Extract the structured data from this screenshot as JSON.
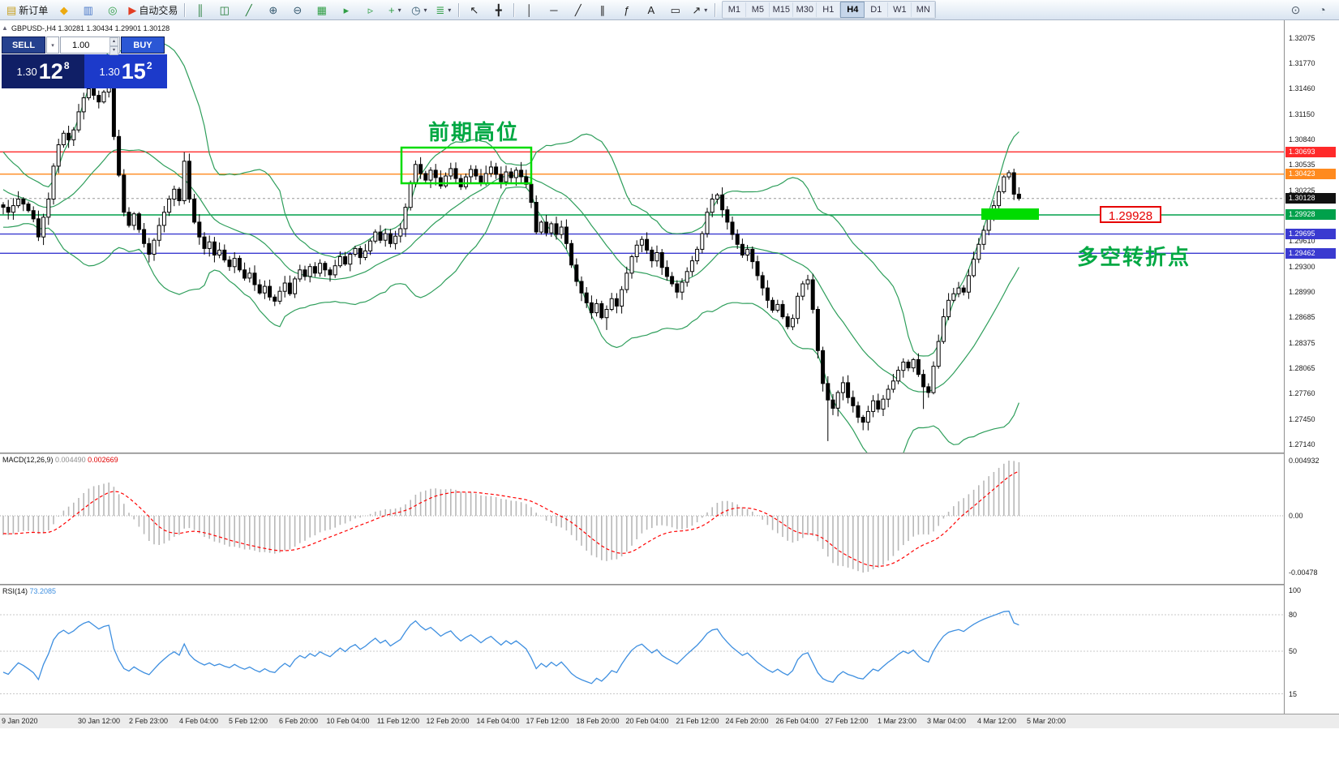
{
  "toolbar": {
    "groups": [
      {
        "items": [
          {
            "name": "new-order-button",
            "glyph": "▤",
            "color": "#c8a020",
            "label": "新订单"
          },
          {
            "name": "market-watch-button",
            "glyph": "◆",
            "color": "#ecaa10"
          },
          {
            "name": "data-window-button",
            "glyph": "▥",
            "color": "#4a78c8"
          },
          {
            "name": "navigator-button",
            "glyph": "◎",
            "color": "#2f9e44"
          },
          {
            "name": "autotrading-button",
            "glyph": "▶",
            "color": "#e23e24",
            "label": "自动交易"
          }
        ]
      },
      {
        "sep": true,
        "items": [
          {
            "name": "bar-chart-button",
            "glyph": "║",
            "color": "#1f7a33"
          },
          {
            "name": "candlestick-chart-button",
            "glyph": "◫",
            "color": "#1f7a33"
          },
          {
            "name": "line-chart-button",
            "glyph": "╱",
            "color": "#1f7a33"
          }
        ]
      },
      {
        "sep": false,
        "items": [
          {
            "name": "zoom-in-button",
            "glyph": "⊕",
            "color": "#35596f"
          },
          {
            "name": "zoom-out-button",
            "glyph": "⊖",
            "color": "#35596f"
          }
        ]
      },
      {
        "sep": false,
        "items": [
          {
            "name": "tile-windows-button",
            "glyph": "▦",
            "color": "#2f9e44"
          }
        ]
      },
      {
        "sep": false,
        "items": [
          {
            "name": "auto-scroll-button",
            "glyph": "▸",
            "color": "#2f9e44"
          },
          {
            "name": "chart-shift-button",
            "glyph": "▹",
            "color": "#2f9e44"
          }
        ]
      },
      {
        "sep": false,
        "items": [
          {
            "name": "new-chart-button",
            "glyph": "+",
            "color": "#2f9e44",
            "dropdown": true
          },
          {
            "name": "profiles-button",
            "glyph": "◷",
            "color": "#35596f",
            "dropdown": true
          },
          {
            "name": "indicators-button",
            "glyph": "≣",
            "color": "#2f9e44",
            "dropdown": true
          }
        ]
      },
      {
        "sep": true,
        "items": [
          {
            "name": "cursor-button",
            "glyph": "↖",
            "color": "#222222"
          },
          {
            "name": "crosshair-button",
            "glyph": "╋",
            "color": "#222222"
          }
        ]
      },
      {
        "sep": true,
        "items": [
          {
            "name": "vertical-line-button",
            "glyph": "│",
            "color": "#222222"
          },
          {
            "name": "horizontal-line-button",
            "glyph": "─",
            "color": "#222222"
          },
          {
            "name": "trendline-button",
            "glyph": "╱",
            "color": "#222222"
          },
          {
            "name": "equidistant-channel-button",
            "glyph": "∥",
            "color": "#222222"
          },
          {
            "name": "fibonacci-button",
            "glyph": "ƒ",
            "color": "#222222"
          },
          {
            "name": "text-button",
            "glyph": "A",
            "color": "#222222"
          },
          {
            "name": "text-label-button",
            "glyph": "▭",
            "color": "#222222"
          },
          {
            "name": "arrows-button",
            "glyph": "↗",
            "color": "#222222",
            "dropdown": true
          }
        ]
      },
      {
        "sep": true,
        "items": []
      }
    ],
    "timeframes": [
      "M1",
      "M5",
      "M15",
      "M30",
      "H1",
      "H4",
      "D1",
      "W1",
      "MN"
    ],
    "active_timeframe": "H4",
    "right_icons": [
      {
        "name": "search-button",
        "glyph": "⊙"
      },
      {
        "name": "community-button",
        "glyph": "◔"
      }
    ]
  },
  "glyphs": {
    "caret": "▾",
    "up": "▴",
    "down": "▾",
    "collapse": "▲"
  },
  "chart": {
    "symbol_header": "GBPUSD-,H4 1.30281 1.30434 1.29901 1.30128",
    "trade_panel": {
      "sell_label": "SELL",
      "buy_label": "BUY",
      "volume": "1.00",
      "sell_price": {
        "base": "1.30",
        "big": "12",
        "sup": "8"
      },
      "buy_price": {
        "base": "1.30",
        "big": "15",
        "sup": "2"
      }
    },
    "annotations": {
      "prev_high_text": "前期高位",
      "pivot_text": "多空转折点",
      "level_callout": "1.29928",
      "text_color": "#00a843",
      "box_color": "#00dc00",
      "callout_color": "#e60000"
    }
  },
  "indicators": {
    "macd": {
      "label": "MACD(12,26,9)",
      "value_main": "0.004490",
      "value_signal": "0.002669"
    },
    "rsi": {
      "label": "RSI(14)",
      "value": "73.2085"
    }
  },
  "chart_data": [
    {
      "type": "candlestick",
      "title": "GBPUSD-,H4",
      "ohlc_header_values": [
        1.30281,
        1.30434,
        1.29901,
        1.30128
      ],
      "y_top_price": 1.32075,
      "y_bottom_price": 1.2714,
      "y_ticks": [
        "1.32075",
        "1.31770",
        "1.31460",
        "1.31150",
        "1.30840",
        "1.30535",
        "1.30225",
        "1.29920",
        "1.29610",
        "1.29300",
        "1.28990",
        "1.28685",
        "1.28375",
        "1.28065",
        "1.27760",
        "1.27450",
        "1.27140"
      ],
      "x_labels": [
        "9 Jan 2020",
        "30 Jan 12:00",
        "2 Feb 23:00",
        "4 Feb 04:00",
        "5 Feb 12:00",
        "6 Feb 20:00",
        "10 Feb 04:00",
        "11 Feb 12:00",
        "12 Feb 20:00",
        "14 Feb 04:00",
        "17 Feb 12:00",
        "18 Feb 20:00",
        "20 Feb 04:00",
        "21 Feb 12:00",
        "24 Feb 20:00",
        "26 Feb 04:00",
        "27 Feb 12:00",
        "1 Mar 23:00",
        "3 Mar 04:00",
        "4 Mar 12:00",
        "5 Mar 20:00"
      ],
      "levels": [
        {
          "price": 1.30693,
          "label": "1.30693",
          "color": "#ff2a2a"
        },
        {
          "price": 1.30423,
          "label": "1.30423",
          "color": "#ff8a1e"
        },
        {
          "price": 1.29928,
          "label": "1.29928",
          "color": "#00a14b"
        },
        {
          "price": 1.29695,
          "label": "1.29695",
          "color": "#3a3ad0"
        },
        {
          "price": 1.29462,
          "label": "1.29462",
          "color": "#3a3ad0"
        }
      ],
      "current": {
        "price": 1.30128,
        "label": "1.30128",
        "tag_bg": "#111111"
      },
      "bollinger": {
        "period": 20,
        "deviation": 2,
        "color": "#2e9e5b"
      },
      "candle_up_fill": "#ffffff",
      "candle_down_fill": "#000000",
      "candle_outline": "#000000",
      "warmup_closes": [
        1.3065,
        1.307,
        1.3058,
        1.3049,
        1.3055,
        1.3042,
        1.3036,
        1.3044,
        1.303,
        1.3022,
        1.3028,
        1.3016,
        1.3008,
        1.3014,
        1.3002,
        1.2995,
        1.3003,
        1.2992,
        1.2999,
        1.3005
      ],
      "closes": [
        1.3002,
        1.2996,
        1.3004,
        1.3012,
        1.3006,
        1.2998,
        1.2988,
        1.2966,
        1.299,
        1.3012,
        1.3052,
        1.3078,
        1.3092,
        1.3084,
        1.3096,
        1.3118,
        1.3135,
        1.3146,
        1.3138,
        1.313,
        1.3142,
        1.3148,
        1.3088,
        1.3041,
        1.2996,
        1.298,
        1.2994,
        1.2975,
        1.2958,
        1.2945,
        1.2962,
        1.298,
        1.2996,
        1.3012,
        1.3024,
        1.301,
        1.3058,
        1.3012,
        1.2984,
        1.2966,
        1.2952,
        1.296,
        1.2944,
        1.295,
        1.2938,
        1.293,
        1.294,
        1.2926,
        1.2916,
        1.2922,
        1.2908,
        1.2898,
        1.2906,
        1.2893,
        1.2888,
        1.29,
        1.291,
        1.2897,
        1.2915,
        1.2926,
        1.2918,
        1.293,
        1.2922,
        1.2934,
        1.2926,
        1.292,
        1.2931,
        1.2942,
        1.2933,
        1.2945,
        1.2952,
        1.2941,
        1.2949,
        1.2961,
        1.2972,
        1.2962,
        1.297,
        1.2958,
        1.2967,
        1.2976,
        1.3002,
        1.3032,
        1.3054,
        1.3043,
        1.3035,
        1.3047,
        1.3038,
        1.3028,
        1.304,
        1.3049,
        1.3037,
        1.3027,
        1.3039,
        1.3048,
        1.304,
        1.3031,
        1.3043,
        1.3051,
        1.3042,
        1.3033,
        1.3045,
        1.3038,
        1.3047,
        1.3039,
        1.303,
        1.3008,
        1.2972,
        1.2984,
        1.2971,
        1.2982,
        1.2969,
        1.2978,
        1.2958,
        1.2932,
        1.2912,
        1.2898,
        1.2886,
        1.2874,
        1.2885,
        1.2868,
        1.2878,
        1.2891,
        1.2882,
        1.2902,
        1.2922,
        1.2942,
        1.2956,
        1.2963,
        1.295,
        1.2937,
        1.2947,
        1.2929,
        1.2918,
        1.2909,
        1.2899,
        1.2911,
        1.2924,
        1.2937,
        1.2951,
        1.297,
        1.2996,
        1.3012,
        1.3017,
        1.2999,
        1.2984,
        1.2969,
        1.2957,
        1.2944,
        1.2951,
        1.2936,
        1.2919,
        1.2904,
        1.2889,
        1.2877,
        1.2884,
        1.2869,
        1.2857,
        1.2867,
        1.2894,
        1.2909,
        1.2914,
        1.2878,
        1.2828,
        1.2788,
        1.2768,
        1.2758,
        1.2777,
        1.2789,
        1.2771,
        1.2761,
        1.2747,
        1.2741,
        1.2754,
        1.2767,
        1.2757,
        1.2769,
        1.2781,
        1.2791,
        1.2804,
        1.2814,
        1.2807,
        1.2817,
        1.2799,
        1.2784,
        1.2777,
        1.2809,
        1.2839,
        1.2869,
        1.2889,
        1.2897,
        1.2904,
        1.2899,
        1.2919,
        1.2939,
        1.2957,
        1.2974,
        1.2989,
        1.3004,
        1.3021,
        1.3039,
        1.3044,
        1.3018,
        1.30128
      ],
      "wick_overrides": {
        "7": {
          "low": 1.2961
        },
        "21": {
          "high": 1.3155
        },
        "36": {
          "high": 1.3069
        },
        "120": {
          "low": 1.2853
        },
        "164": {
          "low": 1.2718
        },
        "183": {
          "low": 1.2757
        },
        "200": {
          "high": 1.3047
        }
      }
    },
    {
      "type": "macd-histogram",
      "label": "MACD(12,26,9)",
      "current_values": [
        0.00449,
        0.002669
      ],
      "params": {
        "fast": 12,
        "slow": 26,
        "signal": 9
      },
      "y_ticks": [
        {
          "label": "0.004932",
          "y": 8
        },
        {
          "label": "0.00",
          "y": 76
        },
        {
          "label": "-0.00478",
          "y": 146
        }
      ],
      "colors": {
        "histogram": "#b8b8b8",
        "signal": "#ff0000",
        "zero_line": "#a8a8a8"
      }
    },
    {
      "type": "line",
      "label": "RSI(14)",
      "current_value": 73.2085,
      "period": 14,
      "y_ticks": [
        {
          "label": "100",
          "value": 100
        },
        {
          "label": "80",
          "value": 80
        },
        {
          "label": "50",
          "value": 50
        },
        {
          "label": "15",
          "value": 15
        }
      ],
      "levels": [
        80,
        50,
        15
      ],
      "color": "#3e8fe0"
    }
  ]
}
